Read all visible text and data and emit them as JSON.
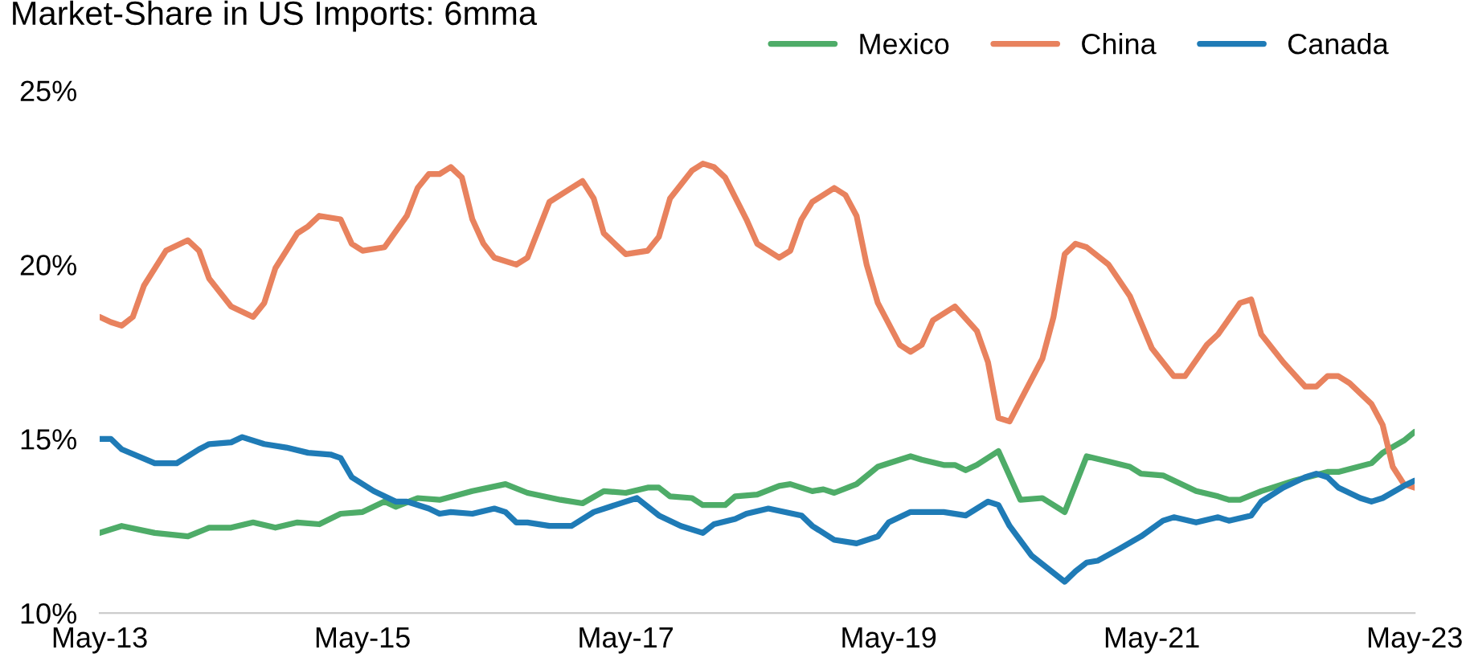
{
  "chart_data": {
    "type": "line",
    "title": "Market-Share in US Imports: 6mma",
    "xlim": [
      "2013-05",
      "2023-05"
    ],
    "xticks": [
      {
        "value": "2013-05",
        "label": "May-13"
      },
      {
        "value": "2015-05",
        "label": "May-15"
      },
      {
        "value": "2017-05",
        "label": "May-17"
      },
      {
        "value": "2019-05",
        "label": "May-19"
      },
      {
        "value": "2021-05",
        "label": "May-21"
      },
      {
        "value": "2023-05",
        "label": "May-23"
      }
    ],
    "ylim": [
      10,
      25
    ],
    "yticks": [
      {
        "value": 10,
        "label": "10%"
      },
      {
        "value": 15,
        "label": "15%"
      },
      {
        "value": 20,
        "label": "20%"
      },
      {
        "value": 25,
        "label": "25%"
      }
    ],
    "grid": false,
    "legend": "top right",
    "marker": "none",
    "line_style": "solid",
    "series": [
      {
        "name": "Mexico",
        "color": "#4eac68",
        "x": [
          "2013-05",
          "2013-07",
          "2013-10",
          "2014-01",
          "2014-03",
          "2014-05",
          "2014-07",
          "2014-09",
          "2014-11",
          "2015-01",
          "2015-03",
          "2015-05",
          "2015-07",
          "2015-08",
          "2015-10",
          "2015-12",
          "2016-03",
          "2016-06",
          "2016-08",
          "2016-11",
          "2017-01",
          "2017-03",
          "2017-05",
          "2017-07",
          "2017-08",
          "2017-09",
          "2017-11",
          "2017-12",
          "2018-02",
          "2018-03",
          "2018-05",
          "2018-07",
          "2018-08",
          "2018-10",
          "2018-11",
          "2018-12",
          "2019-02",
          "2019-04",
          "2019-06",
          "2019-07",
          "2019-08",
          "2019-10",
          "2019-11",
          "2019-12",
          "2020-01",
          "2020-03",
          "2020-05",
          "2020-07",
          "2020-09",
          "2020-11",
          "2021-01",
          "2021-03",
          "2021-04",
          "2021-06",
          "2021-09",
          "2021-11",
          "2021-12",
          "2022-01",
          "2022-03",
          "2022-06",
          "2022-09",
          "2022-10",
          "2023-01",
          "2023-02",
          "2023-04",
          "2023-05"
        ],
        "values": [
          12.3,
          12.5,
          12.3,
          12.2,
          12.45,
          12.45,
          12.6,
          12.45,
          12.6,
          12.55,
          12.85,
          12.9,
          13.2,
          13.05,
          13.3,
          13.25,
          13.5,
          13.7,
          13.45,
          13.25,
          13.15,
          13.5,
          13.45,
          13.6,
          13.6,
          13.35,
          13.3,
          13.1,
          13.1,
          13.35,
          13.4,
          13.65,
          13.7,
          13.5,
          13.55,
          13.45,
          13.7,
          14.2,
          14.4,
          14.5,
          14.4,
          14.25,
          14.25,
          14.1,
          14.25,
          14.65,
          13.25,
          13.3,
          12.9,
          14.5,
          14.35,
          14.2,
          14.0,
          13.95,
          13.5,
          13.35,
          13.25,
          13.25,
          13.5,
          13.8,
          14.05,
          14.05,
          14.3,
          14.6,
          14.95,
          15.2
        ]
      },
      {
        "name": "China",
        "color": "#e8825e",
        "x": [
          "2013-05",
          "2013-06",
          "2013-07",
          "2013-08",
          "2013-09",
          "2013-11",
          "2014-01",
          "2014-02",
          "2014-03",
          "2014-05",
          "2014-07",
          "2014-08",
          "2014-09",
          "2014-11",
          "2014-12",
          "2015-01",
          "2015-03",
          "2015-04",
          "2015-05",
          "2015-07",
          "2015-09",
          "2015-10",
          "2015-11",
          "2015-12",
          "2016-01",
          "2016-02",
          "2016-03",
          "2016-04",
          "2016-05",
          "2016-07",
          "2016-08",
          "2016-10",
          "2016-12",
          "2017-01",
          "2017-02",
          "2017-03",
          "2017-05",
          "2017-07",
          "2017-08",
          "2017-09",
          "2017-11",
          "2017-12",
          "2018-01",
          "2018-02",
          "2018-04",
          "2018-05",
          "2018-07",
          "2018-08",
          "2018-09",
          "2018-10",
          "2018-12",
          "2019-01",
          "2019-02",
          "2019-03",
          "2019-04",
          "2019-06",
          "2019-07",
          "2019-08",
          "2019-09",
          "2019-11",
          "2020-01",
          "2020-02",
          "2020-03",
          "2020-04",
          "2020-05",
          "2020-07",
          "2020-08",
          "2020-09",
          "2020-10",
          "2020-11",
          "2021-01",
          "2021-03",
          "2021-05",
          "2021-07",
          "2021-08",
          "2021-10",
          "2021-11",
          "2022-01",
          "2022-02",
          "2022-03",
          "2022-05",
          "2022-07",
          "2022-08",
          "2022-09",
          "2022-10",
          "2022-11",
          "2023-01",
          "2023-02",
          "2023-03",
          "2023-04",
          "2023-05"
        ],
        "values": [
          18.5,
          18.35,
          18.25,
          18.5,
          19.4,
          20.4,
          20.7,
          20.4,
          19.6,
          18.8,
          18.5,
          18.9,
          19.9,
          20.9,
          21.1,
          21.4,
          21.3,
          20.6,
          20.4,
          20.5,
          21.4,
          22.2,
          22.6,
          22.6,
          22.8,
          22.5,
          21.3,
          20.6,
          20.2,
          20.0,
          20.2,
          21.8,
          22.2,
          22.4,
          21.9,
          20.9,
          20.3,
          20.4,
          20.8,
          21.9,
          22.7,
          22.9,
          22.8,
          22.5,
          21.3,
          20.6,
          20.2,
          20.4,
          21.3,
          21.8,
          22.2,
          22.0,
          21.4,
          20.0,
          18.9,
          17.7,
          17.5,
          17.7,
          18.4,
          18.8,
          18.1,
          17.2,
          15.6,
          15.5,
          16.1,
          17.3,
          18.5,
          20.3,
          20.6,
          20.5,
          20.0,
          19.1,
          17.6,
          16.8,
          16.8,
          17.7,
          18.0,
          18.9,
          19.0,
          18.0,
          17.2,
          16.5,
          16.5,
          16.8,
          16.8,
          16.6,
          16.0,
          15.4,
          14.2,
          13.7,
          13.6
        ]
      },
      {
        "name": "Canada",
        "color": "#1f7bb6",
        "x": [
          "2013-05",
          "2013-06",
          "2013-07",
          "2013-10",
          "2013-12",
          "2014-02",
          "2014-03",
          "2014-05",
          "2014-06",
          "2014-08",
          "2014-10",
          "2014-12",
          "2015-02",
          "2015-03",
          "2015-04",
          "2015-06",
          "2015-08",
          "2015-09",
          "2015-11",
          "2015-12",
          "2016-01",
          "2016-03",
          "2016-05",
          "2016-06",
          "2016-07",
          "2016-08",
          "2016-10",
          "2016-12",
          "2017-02",
          "2017-05",
          "2017-06",
          "2017-08",
          "2017-10",
          "2017-12",
          "2018-01",
          "2018-03",
          "2018-04",
          "2018-06",
          "2018-09",
          "2018-10",
          "2018-12",
          "2019-02",
          "2019-04",
          "2019-05",
          "2019-07",
          "2019-09",
          "2019-10",
          "2019-12",
          "2020-02",
          "2020-03",
          "2020-04",
          "2020-06",
          "2020-09",
          "2020-10",
          "2020-11",
          "2020-12",
          "2021-02",
          "2021-04",
          "2021-06",
          "2021-07",
          "2021-09",
          "2021-11",
          "2021-12",
          "2022-02",
          "2022-03",
          "2022-05",
          "2022-07",
          "2022-08",
          "2022-09",
          "2022-10",
          "2022-12",
          "2023-01",
          "2023-02",
          "2023-04",
          "2023-05"
        ],
        "values": [
          15.0,
          15.0,
          14.7,
          14.3,
          14.3,
          14.7,
          14.85,
          14.9,
          15.05,
          14.85,
          14.75,
          14.6,
          14.55,
          14.45,
          13.9,
          13.5,
          13.2,
          13.2,
          13.0,
          12.85,
          12.9,
          12.85,
          13.0,
          12.9,
          12.6,
          12.6,
          12.5,
          12.5,
          12.9,
          13.2,
          13.3,
          12.8,
          12.5,
          12.3,
          12.55,
          12.7,
          12.85,
          13.0,
          12.8,
          12.5,
          12.1,
          12.0,
          12.2,
          12.6,
          12.9,
          12.9,
          12.9,
          12.8,
          13.2,
          13.1,
          12.5,
          11.65,
          10.9,
          11.2,
          11.45,
          11.5,
          11.85,
          12.2,
          12.65,
          12.75,
          12.6,
          12.75,
          12.65,
          12.8,
          13.2,
          13.6,
          13.9,
          14.0,
          13.9,
          13.6,
          13.3,
          13.2,
          13.3,
          13.65,
          13.8
        ]
      }
    ]
  }
}
